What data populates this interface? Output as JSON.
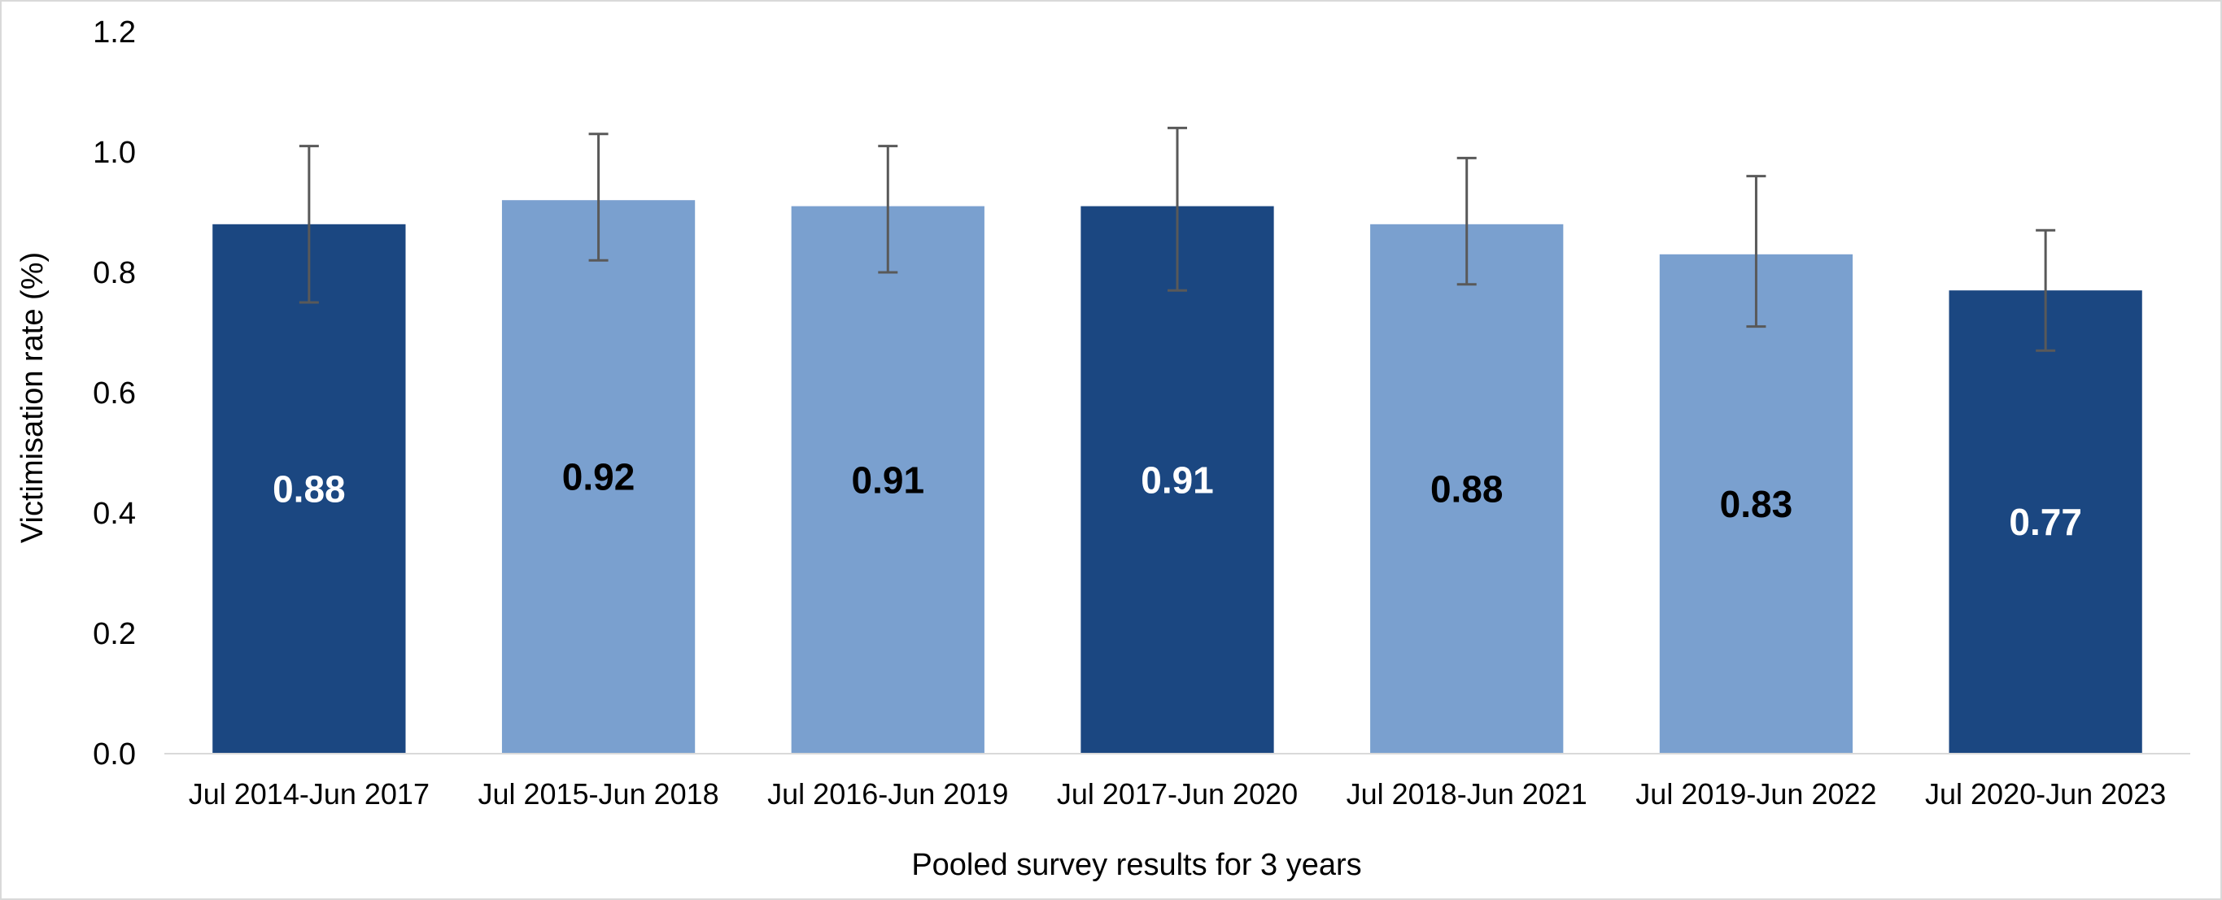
{
  "chart_data": {
    "type": "bar",
    "title": "",
    "xlabel": "Pooled survey results for 3 years",
    "ylabel": "Victimisation rate (%)",
    "ylim": [
      0,
      1.2
    ],
    "yticks": [
      "0.0",
      "0.2",
      "0.4",
      "0.6",
      "0.8",
      "1.0",
      "1.2"
    ],
    "grid": false,
    "legend": "none",
    "categories": [
      "Jul 2014-Jun 2017",
      "Jul 2015-Jun 2018",
      "Jul 2016-Jun 2019",
      "Jul 2017-Jun 2020",
      "Jul 2018-Jun 2021",
      "Jul 2019-Jun 2022",
      "Jul 2020-Jun 2023"
    ],
    "values": [
      0.88,
      0.92,
      0.91,
      0.91,
      0.88,
      0.83,
      0.77
    ],
    "data_labels": [
      "0.88",
      "0.92",
      "0.91",
      "0.91",
      "0.88",
      "0.83",
      "0.77"
    ],
    "error_low": [
      0.75,
      0.82,
      0.8,
      0.77,
      0.78,
      0.71,
      0.67
    ],
    "error_high": [
      1.01,
      1.03,
      1.01,
      1.04,
      0.99,
      0.96,
      0.87
    ],
    "bar_colors": [
      "#1b4781",
      "#7aa0cf",
      "#7aa0cf",
      "#1b4781",
      "#7aa0cf",
      "#7aa0cf",
      "#1b4781"
    ],
    "label_colors": [
      "#ffffff",
      "#000000",
      "#000000",
      "#ffffff",
      "#000000",
      "#000000",
      "#ffffff"
    ],
    "error_bar_color": "#595959",
    "axis_color": "#d9d9d9"
  }
}
